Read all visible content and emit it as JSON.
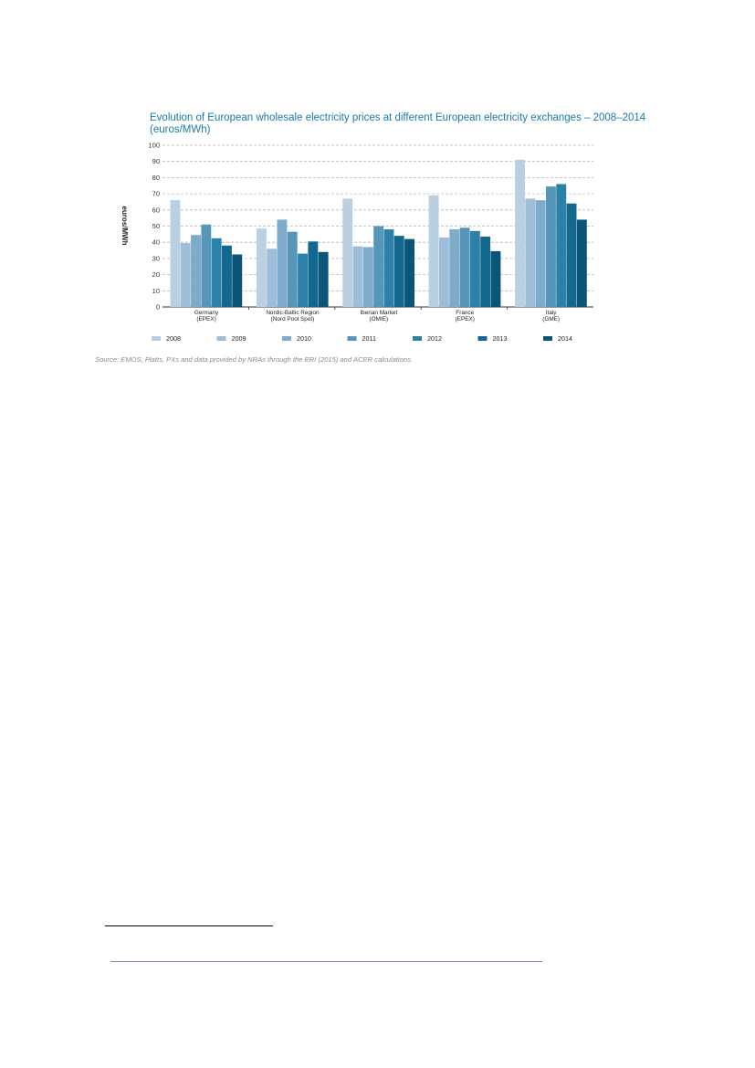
{
  "chart_data": {
    "type": "bar",
    "title": "Evolution of European wholesale electricity prices at different European electricity exchanges – 2008–2014 (euros/MWh)",
    "ylabel": "euros/MWh",
    "xlabel": "",
    "ylim": [
      0,
      100
    ],
    "yticks": [
      "0",
      "10",
      "20",
      "30",
      "40",
      "50",
      "60",
      "70",
      "80",
      "90",
      "100"
    ],
    "grid": true,
    "legend_position": "bottom",
    "categories": [
      [
        "Germany",
        "(EPEX)"
      ],
      [
        "Nordic-Baltic Region",
        "(Nord Pool Spot)"
      ],
      [
        "Iberian Market",
        "(OMIE)"
      ],
      [
        "France",
        "(EPEX)"
      ],
      [
        "Italy",
        "(GME)"
      ]
    ],
    "series": [
      {
        "name": "2008",
        "color": "#b9d0e3",
        "values": [
          66,
          48.5,
          67,
          69,
          91
        ]
      },
      {
        "name": "2009",
        "color": "#9dbdd8",
        "values": [
          39.5,
          36,
          37.5,
          43,
          67
        ]
      },
      {
        "name": "2010",
        "color": "#7eaacb",
        "values": [
          44.5,
          54,
          37,
          48,
          66
        ]
      },
      {
        "name": "2011",
        "color": "#5596b9",
        "values": [
          51,
          46.5,
          50,
          49,
          74.5
        ]
      },
      {
        "name": "2012",
        "color": "#2c81a9",
        "values": [
          42.5,
          33,
          48,
          47,
          76
        ]
      },
      {
        "name": "2013",
        "color": "#12688f",
        "values": [
          38,
          40.5,
          44,
          43.5,
          64
        ]
      },
      {
        "name": "2014",
        "color": "#0a5578",
        "values": [
          32.5,
          34,
          42,
          34.5,
          54
        ]
      }
    ]
  },
  "source_note": "Source: EMOS, Platts, PXs and data provided by NRAs through the ERI (2015) and ACER calculations."
}
